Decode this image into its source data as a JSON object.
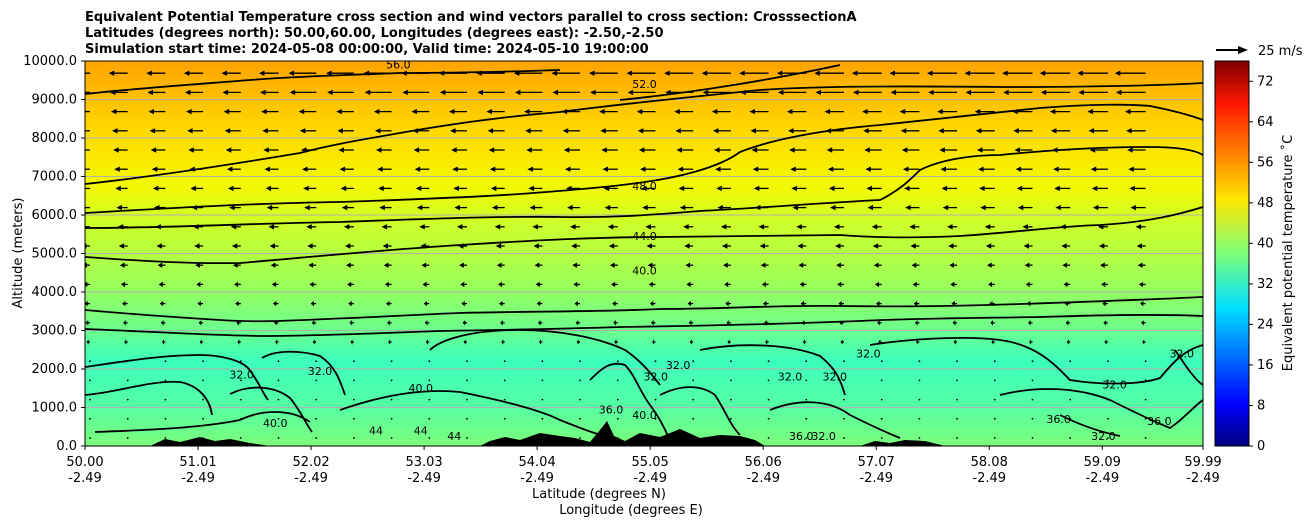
{
  "chart_data": {
    "type": "heatmap",
    "title_lines": [
      "Equivalent Potential Temperature cross section and wind vectors parallel to cross section: CrosssectionA",
      "Latitudes (degrees north): 50.00,60.00, Longitudes (degrees east): -2.50,-2.50",
      "Simulation start time: 2024-05-08 00:00:00, Valid time: 2024-05-10 19:00:00"
    ],
    "ylabel": "Altitude (meters)",
    "xlabel_lat": "Latitude (degrees N)",
    "xlabel_lon": "Longitude (degrees E)",
    "ylim": [
      0,
      10000
    ],
    "yticks": [
      "0.0",
      "1000.0",
      "2000.0",
      "3000.0",
      "4000.0",
      "5000.0",
      "6000.0",
      "7000.0",
      "8000.0",
      "9000.0",
      "10000.0"
    ],
    "xlim": [
      50.0,
      59.99
    ],
    "xticks": [
      {
        "lat": "50.00",
        "lon": "-2.49",
        "value": 50.0
      },
      {
        "lat": "51.01",
        "lon": "-2.49",
        "value": 51.01
      },
      {
        "lat": "52.02",
        "lon": "-2.49",
        "value": 52.02
      },
      {
        "lat": "53.03",
        "lon": "-2.49",
        "value": 53.03
      },
      {
        "lat": "54.04",
        "lon": "-2.49",
        "value": 54.04
      },
      {
        "lat": "55.05",
        "lon": "-2.49",
        "value": 55.05
      },
      {
        "lat": "56.06",
        "lon": "-2.49",
        "value": 56.06
      },
      {
        "lat": "57.07",
        "lon": "-2.49",
        "value": 57.07
      },
      {
        "lat": "58.08",
        "lon": "-2.49",
        "value": 58.08
      },
      {
        "lat": "59.09",
        "lon": "-2.49",
        "value": 59.09
      },
      {
        "lat": "59.99",
        "lon": "-2.49",
        "value": 59.99
      }
    ],
    "grid": "horizontal",
    "colorbar": {
      "label": "Equivalent potential temperature ˚C",
      "range": [
        0,
        76
      ],
      "ticks": [
        "0",
        "8",
        "16",
        "24",
        "32",
        "40",
        "48",
        "56",
        "64",
        "72"
      ],
      "colormap": "jet"
    },
    "quiver_key": {
      "label": "25 m/s",
      "value": 25
    },
    "contour_labels": [
      {
        "text": "56.0",
        "x": 52.8,
        "y": 9800
      },
      {
        "text": "52.0",
        "x": 55.0,
        "y": 9300
      },
      {
        "text": "48.0",
        "x": 55.0,
        "y": 6650
      },
      {
        "text": "44.0",
        "x": 55.0,
        "y": 5350
      },
      {
        "text": "40.0",
        "x": 55.0,
        "y": 4450
      },
      {
        "text": "40.0",
        "x": 53.0,
        "y": 1400
      },
      {
        "text": "32.0",
        "x": 51.4,
        "y": 1750
      },
      {
        "text": "32.0",
        "x": 52.1,
        "y": 1850
      },
      {
        "text": "32.0",
        "x": 55.1,
        "y": 1700
      },
      {
        "text": "32.0",
        "x": 55.3,
        "y": 2000
      },
      {
        "text": "32.0",
        "x": 56.3,
        "y": 1700
      },
      {
        "text": "32.0",
        "x": 56.7,
        "y": 1700
      },
      {
        "text": "32.0",
        "x": 57.0,
        "y": 2300
      },
      {
        "text": "32.0",
        "x": 59.2,
        "y": 1500
      },
      {
        "text": "32.0",
        "x": 59.8,
        "y": 2300
      },
      {
        "text": "36.0",
        "x": 54.7,
        "y": 850
      },
      {
        "text": "36.0",
        "x": 56.4,
        "y": 150
      },
      {
        "text": "36.0",
        "x": 58.7,
        "y": 600
      },
      {
        "text": "36.0",
        "x": 59.6,
        "y": 550
      },
      {
        "text": "32.0",
        "x": 56.6,
        "y": 150
      },
      {
        "text": "32.0",
        "x": 59.1,
        "y": 150
      },
      {
        "text": "40.0",
        "x": 51.7,
        "y": 500
      },
      {
        "text": "40.0",
        "x": 55.0,
        "y": 700
      },
      {
        "text": "44",
        "x": 52.6,
        "y": 300
      },
      {
        "text": "44",
        "x": 53.0,
        "y": 300
      },
      {
        "text": "44",
        "x": 53.3,
        "y": 150
      }
    ]
  }
}
